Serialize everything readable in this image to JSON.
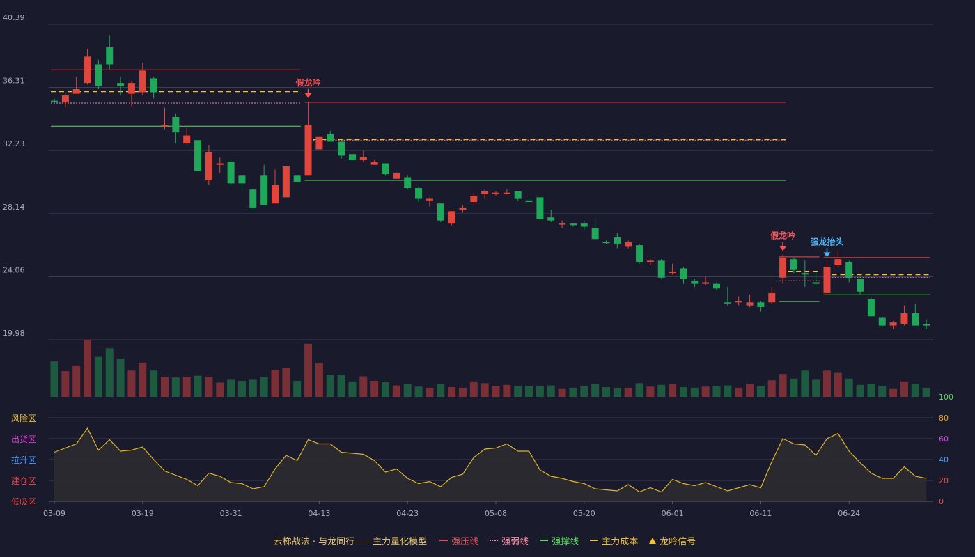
{
  "chart_data": {
    "type": "candlestick",
    "x_tick_labels": [
      "03-09",
      "03-19",
      "03-31",
      "04-13",
      "04-23",
      "05-08",
      "05-20",
      "06-01",
      "06-11",
      "06-24"
    ],
    "y_tick_labels": [
      "40.39",
      "36.31",
      "32.23",
      "28.14",
      "24.06",
      "19.98"
    ],
    "ylim": [
      19.98,
      40.39
    ],
    "grid": true,
    "colors": {
      "up": "#e0463c",
      "down": "#1fa859",
      "up_volume": "#7a2f36",
      "down_volume": "#1d5a3f",
      "resist": "#e05050",
      "weak": "#ff8aa0",
      "support": "#5dde5d",
      "cost": "#f2c230",
      "signal_fake": "#f0555a",
      "signal_strong": "#4fb5f5",
      "oscillator": "#e0b528"
    },
    "candles": [
      [
        35.45,
        35.4,
        35.6,
        35.3,
        "d"
      ],
      [
        35.35,
        35.8,
        35.95,
        35.0,
        "u"
      ],
      [
        35.9,
        36.2,
        37.0,
        35.9,
        "u"
      ],
      [
        36.6,
        38.3,
        38.8,
        36.5,
        "u"
      ],
      [
        37.8,
        36.4,
        38.1,
        36.2,
        "d"
      ],
      [
        38.9,
        37.8,
        39.7,
        37.5,
        "d"
      ],
      [
        36.6,
        36.4,
        37.0,
        35.8,
        "d"
      ],
      [
        35.9,
        36.6,
        36.7,
        35.1,
        "u"
      ],
      [
        36.0,
        37.4,
        37.9,
        35.8,
        "u"
      ],
      [
        36.9,
        36.0,
        37.0,
        35.6,
        "d"
      ],
      [
        33.8,
        33.9,
        35.0,
        33.6,
        "u"
      ],
      [
        34.4,
        33.4,
        34.6,
        32.7,
        "d"
      ],
      [
        32.7,
        33.2,
        33.7,
        32.6,
        "u"
      ],
      [
        32.9,
        30.9,
        32.9,
        30.9,
        "d"
      ],
      [
        30.3,
        32.1,
        32.6,
        30.0,
        "u"
      ],
      [
        31.3,
        31.4,
        31.8,
        30.8,
        "u"
      ],
      [
        31.5,
        30.1,
        31.6,
        30.0,
        "d"
      ],
      [
        30.6,
        30.1,
        30.6,
        29.7,
        "d"
      ],
      [
        29.7,
        28.5,
        29.8,
        28.4,
        "d"
      ],
      [
        30.6,
        28.7,
        31.3,
        28.7,
        "d"
      ],
      [
        28.8,
        30.0,
        31.0,
        28.8,
        "u"
      ],
      [
        29.2,
        31.2,
        31.2,
        29.2,
        "u"
      ],
      [
        30.6,
        30.2,
        30.7,
        30.1,
        "d"
      ],
      [
        30.6,
        33.9,
        35.4,
        30.6,
        "u"
      ],
      [
        32.3,
        33.1,
        33.1,
        32.3,
        "u"
      ],
      [
        33.3,
        32.8,
        33.5,
        32.8,
        "d"
      ],
      [
        32.8,
        31.9,
        32.8,
        31.7,
        "d"
      ],
      [
        32.0,
        31.6,
        32.0,
        31.6,
        "d"
      ],
      [
        31.6,
        31.8,
        32.2,
        31.5,
        "u"
      ],
      [
        31.3,
        31.5,
        31.6,
        31.3,
        "u"
      ],
      [
        31.4,
        30.7,
        31.4,
        30.6,
        "d"
      ],
      [
        30.4,
        30.8,
        30.8,
        30.4,
        "u"
      ],
      [
        30.5,
        29.8,
        30.6,
        29.7,
        "d"
      ],
      [
        29.8,
        29.1,
        29.9,
        28.9,
        "d"
      ],
      [
        29.1,
        29.0,
        29.2,
        28.6,
        "u"
      ],
      [
        28.8,
        27.7,
        28.8,
        27.6,
        "d"
      ],
      [
        27.5,
        28.3,
        28.3,
        27.4,
        "u"
      ],
      [
        28.4,
        28.5,
        28.7,
        28.2,
        "u"
      ],
      [
        28.9,
        29.3,
        29.5,
        28.8,
        "u"
      ],
      [
        29.4,
        29.6,
        29.7,
        29.1,
        "u"
      ],
      [
        29.4,
        29.5,
        29.6,
        29.3,
        "u"
      ],
      [
        29.4,
        29.5,
        29.7,
        29.4,
        "u"
      ],
      [
        29.6,
        29.1,
        29.6,
        29.0,
        "d"
      ],
      [
        29.0,
        28.9,
        29.2,
        28.8,
        "d"
      ],
      [
        29.2,
        27.8,
        29.2,
        27.7,
        "d"
      ],
      [
        27.9,
        27.7,
        28.4,
        27.6,
        "d"
      ],
      [
        27.5,
        27.5,
        27.7,
        27.2,
        "u"
      ],
      [
        27.5,
        27.4,
        27.5,
        27.3,
        "d"
      ],
      [
        27.5,
        27.3,
        27.7,
        27.1,
        "d"
      ],
      [
        27.2,
        26.5,
        27.8,
        26.4,
        "d"
      ],
      [
        26.3,
        26.3,
        26.4,
        26.2,
        "d"
      ],
      [
        26.6,
        26.2,
        26.9,
        25.9,
        "d"
      ],
      [
        26.0,
        26.3,
        26.4,
        25.9,
        "u"
      ],
      [
        26.1,
        25.0,
        26.2,
        24.9,
        "d"
      ],
      [
        25.0,
        25.1,
        25.2,
        24.8,
        "u"
      ],
      [
        25.1,
        24.0,
        25.2,
        23.9,
        "d"
      ],
      [
        24.4,
        24.3,
        24.9,
        24.2,
        "u"
      ],
      [
        24.6,
        23.9,
        24.7,
        23.6,
        "d"
      ],
      [
        23.8,
        23.6,
        23.9,
        23.4,
        "d"
      ],
      [
        23.6,
        23.7,
        24.1,
        23.5,
        "u"
      ],
      [
        23.6,
        23.3,
        23.7,
        23.2,
        "d"
      ],
      [
        22.4,
        22.4,
        23.4,
        22.2,
        "d"
      ],
      [
        22.4,
        22.5,
        22.8,
        22.2,
        "u"
      ],
      [
        22.2,
        22.4,
        22.9,
        22.1,
        "u"
      ],
      [
        22.4,
        22.1,
        22.5,
        21.8,
        "d"
      ],
      [
        22.4,
        23.0,
        23.4,
        22.3,
        "u"
      ],
      [
        24.0,
        25.3,
        25.5,
        23.6,
        "u"
      ],
      [
        25.2,
        24.5,
        25.3,
        24.3,
        "d"
      ],
      [
        24.3,
        24.2,
        25.1,
        23.4,
        "d"
      ],
      [
        23.7,
        23.6,
        24.4,
        23.5,
        "d"
      ],
      [
        23.0,
        24.7,
        25.1,
        22.9,
        "u"
      ],
      [
        24.8,
        25.2,
        25.8,
        24.7,
        "u"
      ],
      [
        25.0,
        24.0,
        25.1,
        23.7,
        "d"
      ],
      [
        23.9,
        23.1,
        23.9,
        22.9,
        "d"
      ],
      [
        22.6,
        21.5,
        22.7,
        21.5,
        "d"
      ],
      [
        21.4,
        20.9,
        21.5,
        20.8,
        "d"
      ],
      [
        20.9,
        21.1,
        21.2,
        20.7,
        "u"
      ],
      [
        21.0,
        21.7,
        22.2,
        20.9,
        "u"
      ],
      [
        21.7,
        20.9,
        22.3,
        20.9,
        "d"
      ],
      [
        21.0,
        20.9,
        21.3,
        20.7,
        "d"
      ]
    ],
    "volume": [
      0.62,
      0.45,
      0.55,
      1.0,
      0.7,
      0.85,
      0.67,
      0.46,
      0.6,
      0.46,
      0.35,
      0.34,
      0.35,
      0.37,
      0.35,
      0.25,
      0.3,
      0.28,
      0.3,
      0.35,
      0.47,
      0.51,
      0.28,
      0.93,
      0.59,
      0.39,
      0.39,
      0.27,
      0.36,
      0.28,
      0.26,
      0.2,
      0.22,
      0.18,
      0.16,
      0.22,
      0.17,
      0.16,
      0.27,
      0.24,
      0.19,
      0.21,
      0.19,
      0.19,
      0.19,
      0.2,
      0.15,
      0.16,
      0.19,
      0.23,
      0.17,
      0.16,
      0.16,
      0.24,
      0.18,
      0.21,
      0.22,
      0.17,
      0.16,
      0.18,
      0.19,
      0.2,
      0.16,
      0.23,
      0.19,
      0.29,
      0.4,
      0.32,
      0.46,
      0.3,
      0.46,
      0.42,
      0.32,
      0.21,
      0.22,
      0.19,
      0.15,
      0.27,
      0.23,
      0.16
    ],
    "oscillator": {
      "y_tick_labels": [
        "100",
        "80",
        "60",
        "40",
        "20",
        "0"
      ],
      "ylim": [
        0,
        100
      ],
      "zone_labels": [
        "风险区",
        "出货区",
        "拉升区",
        "建仓区",
        "低吸区"
      ],
      "zone_colors": [
        "#f2c230",
        "#e040e0",
        "#4a9cff",
        "#e05050",
        "#e05050"
      ],
      "tick_colors": [
        "#5dde5d",
        "#f2a020",
        "#e040e0",
        "#4a9cff",
        "#e05050",
        "#e05050"
      ],
      "values": [
        47,
        51,
        55,
        70,
        49,
        59,
        48,
        49,
        52,
        40,
        29,
        25,
        21,
        15,
        27,
        24,
        18,
        17,
        12,
        14,
        31,
        44,
        39,
        59,
        55,
        55,
        47,
        46,
        45,
        39,
        28,
        31,
        22,
        17,
        19,
        14,
        23,
        26,
        42,
        50,
        51,
        55,
        48,
        48,
        30,
        24,
        22,
        19,
        17,
        12,
        11,
        10,
        16,
        9,
        13,
        9,
        21,
        17,
        15,
        18,
        14,
        10,
        13,
        16,
        13,
        38,
        60,
        55,
        54,
        44,
        60,
        65,
        48,
        37,
        27,
        22,
        22,
        33,
        24,
        22
      ]
    },
    "levels": [
      {
        "type": "resist",
        "from": 0,
        "to": 22,
        "value": 37.45
      },
      {
        "type": "weak",
        "from": 0,
        "to": 22,
        "value": 35.3
      },
      {
        "type": "cost",
        "from": 0,
        "to": 22,
        "value": 36.05,
        "dashed": true
      },
      {
        "type": "support",
        "from": 0,
        "to": 22,
        "value": 33.8
      },
      {
        "type": "resist",
        "from": 23,
        "to": 66,
        "value": 35.35
      },
      {
        "type": "cost",
        "from": 23,
        "to": 66,
        "value": 32.95,
        "dashed": true
      },
      {
        "type": "weak",
        "from": 23,
        "to": 66,
        "value": 32.9
      },
      {
        "type": "support",
        "from": 23,
        "to": 66,
        "value": 30.3
      },
      {
        "type": "resist",
        "from": 66,
        "to": 69,
        "value": 25.35
      },
      {
        "type": "weak",
        "from": 66,
        "to": 69,
        "value": 23.8
      },
      {
        "type": "cost",
        "from": 66,
        "to": 69,
        "value": 24.4,
        "dashed": true
      },
      {
        "type": "support",
        "from": 66,
        "to": 69,
        "value": 22.45
      },
      {
        "type": "resist",
        "from": 70,
        "to": 79,
        "value": 25.3
      },
      {
        "type": "cost",
        "from": 70,
        "to": 79,
        "value": 24.2,
        "dashed": true
      },
      {
        "type": "weak",
        "from": 70,
        "to": 79,
        "value": 24.0
      },
      {
        "type": "support",
        "from": 70,
        "to": 79,
        "value": 22.9
      }
    ],
    "signals": [
      {
        "index": 23,
        "label": "假龙吟",
        "kind": "fake"
      },
      {
        "index": 66,
        "label": "假龙吟",
        "kind": "fake"
      },
      {
        "index": 70,
        "label": "强龙抬头",
        "kind": "strong"
      }
    ]
  },
  "legend": {
    "title": "云梯战法 · 与龙同行——主力量化模型",
    "items": [
      "强压线",
      "强弱线",
      "强撑线",
      "主力成本",
      "龙吟信号"
    ],
    "colors": [
      "#e05050",
      "#ff8aa0",
      "#5dde5d",
      "#f2c230",
      "#f2c230"
    ],
    "styles": [
      "solid",
      "dotted",
      "solid",
      "dashed",
      "triangle"
    ],
    "title_color": "#e9c46a"
  }
}
